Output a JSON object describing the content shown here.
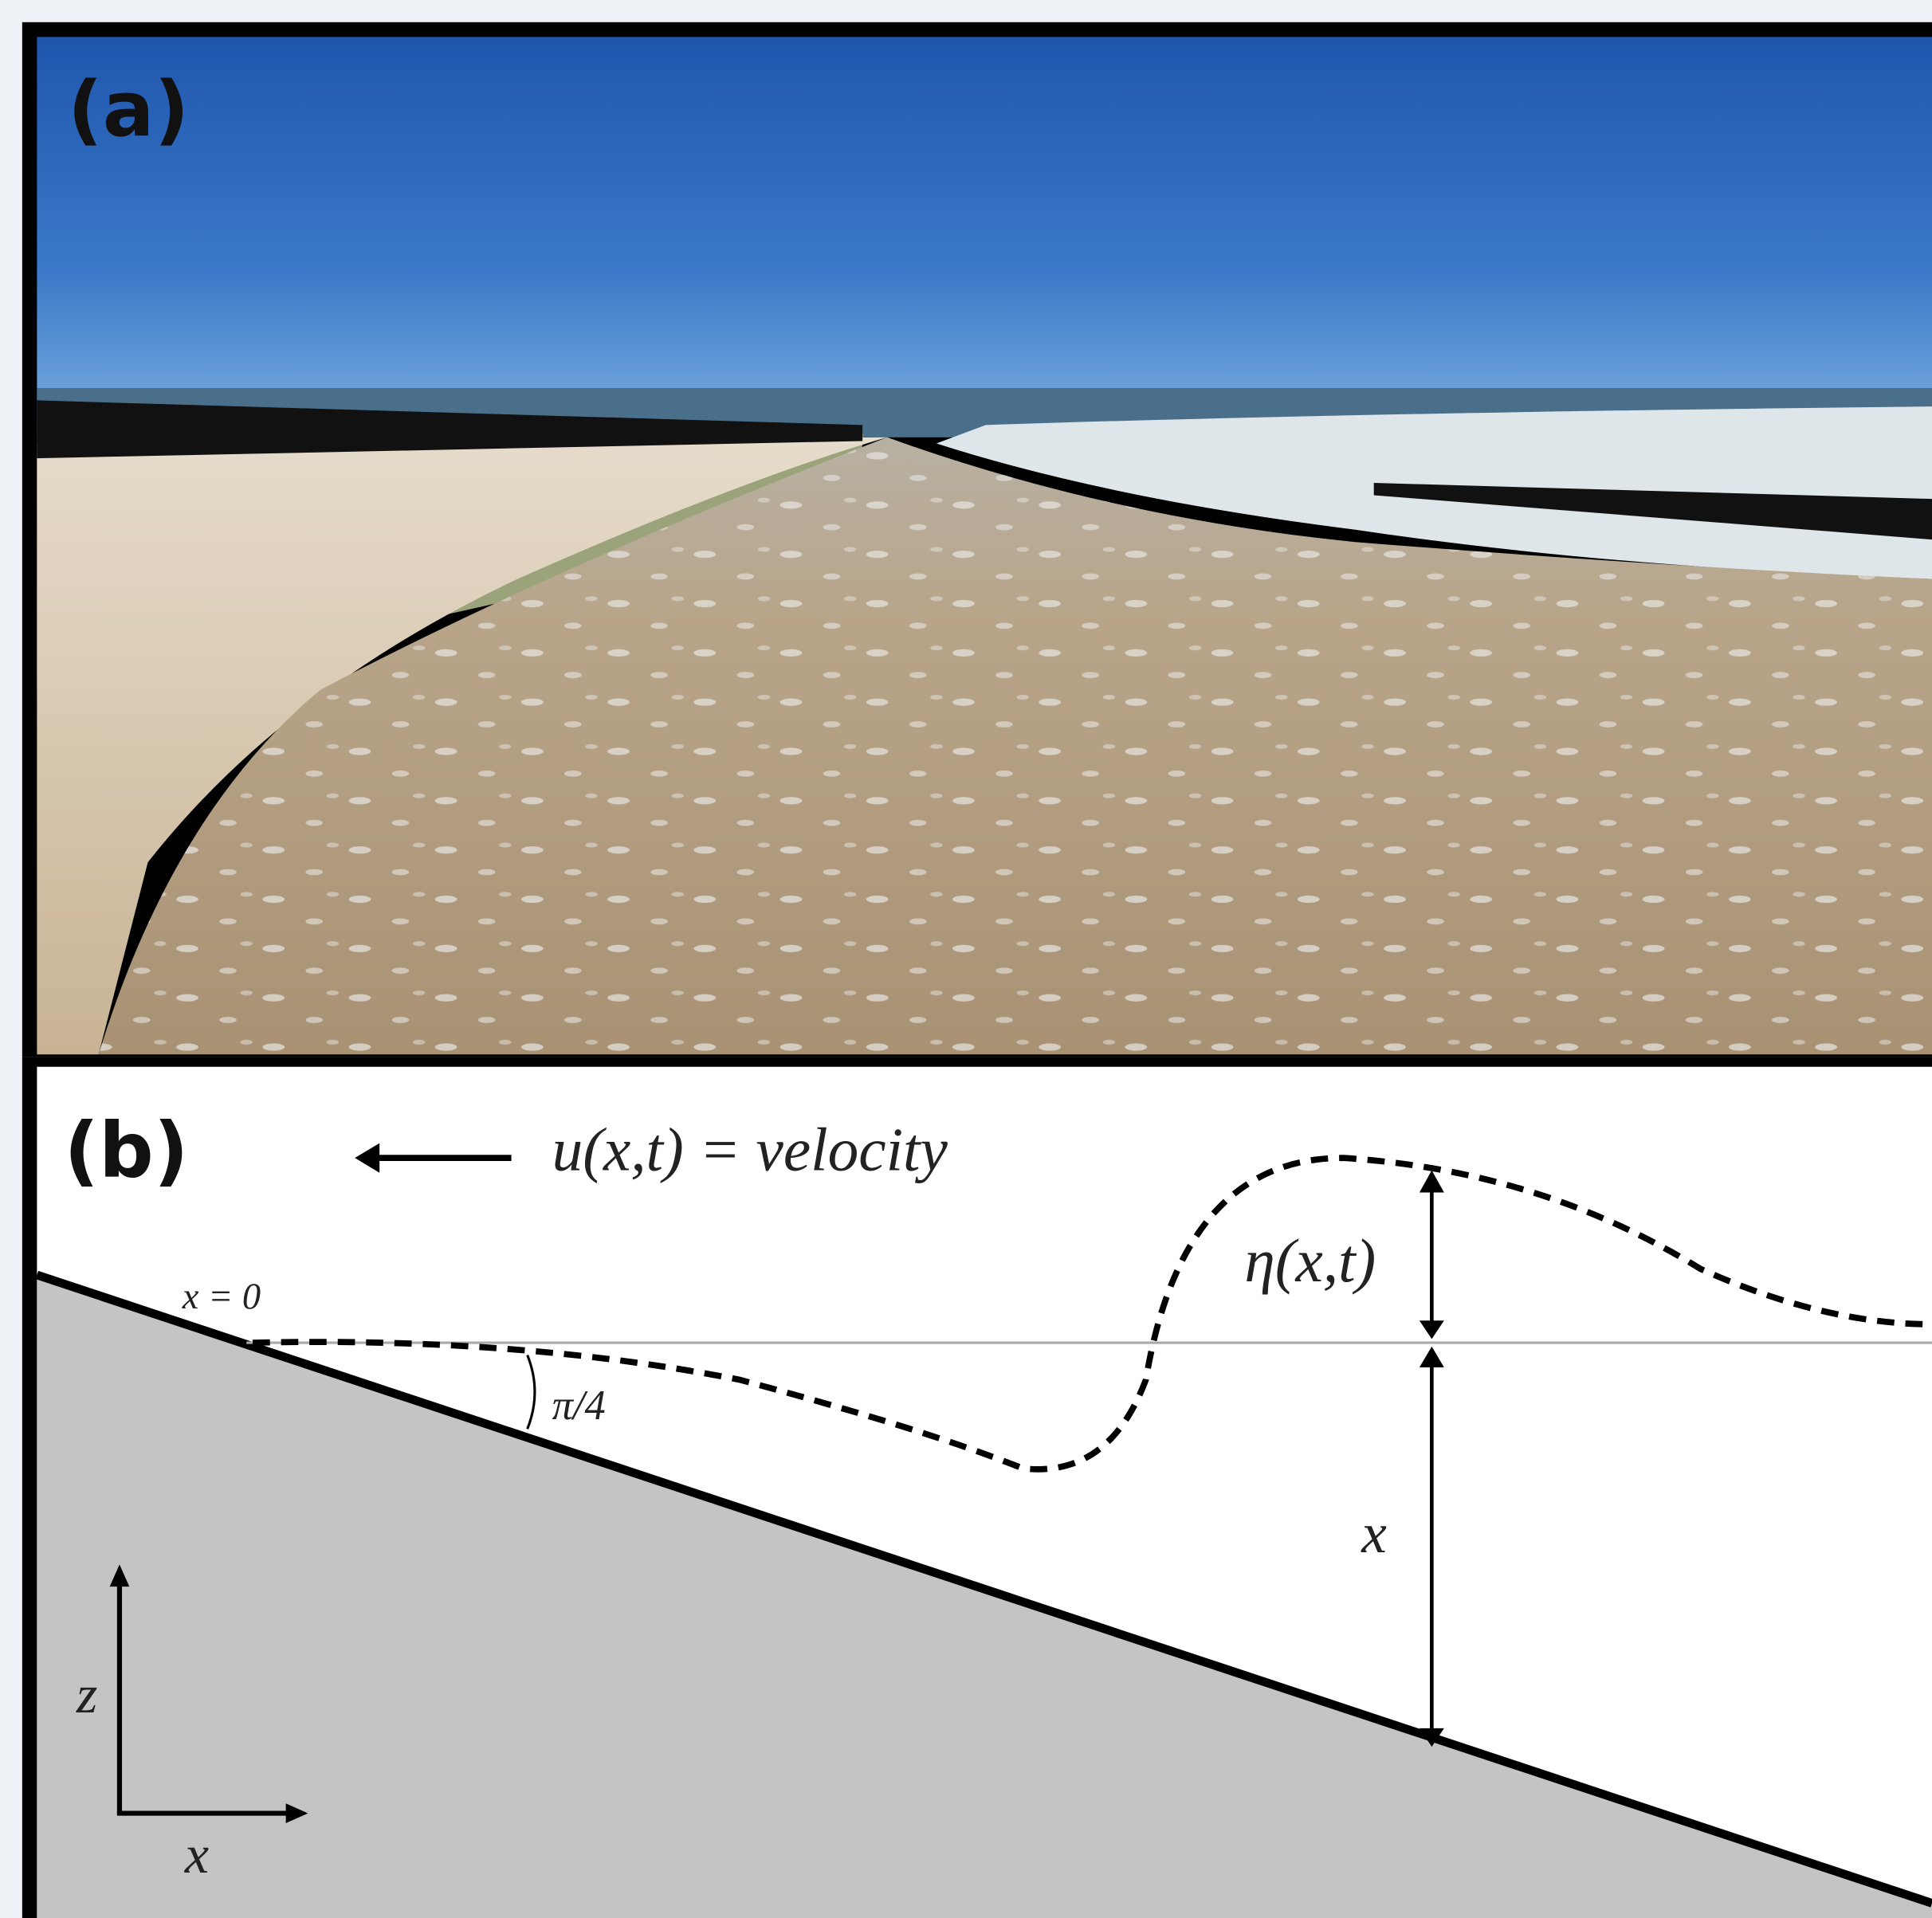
{
  "panels": [
    {
      "label": "(a)"
    },
    {
      "label": "(b)",
      "velocity_label": "u(x,t) = velocity",
      "origin_label": "x = 0",
      "angle_label": "π/4",
      "elevation_label": "η(x,t)",
      "depth_label": "x",
      "z_axis_label": "z",
      "x_axis_label": "x"
    }
  ]
}
